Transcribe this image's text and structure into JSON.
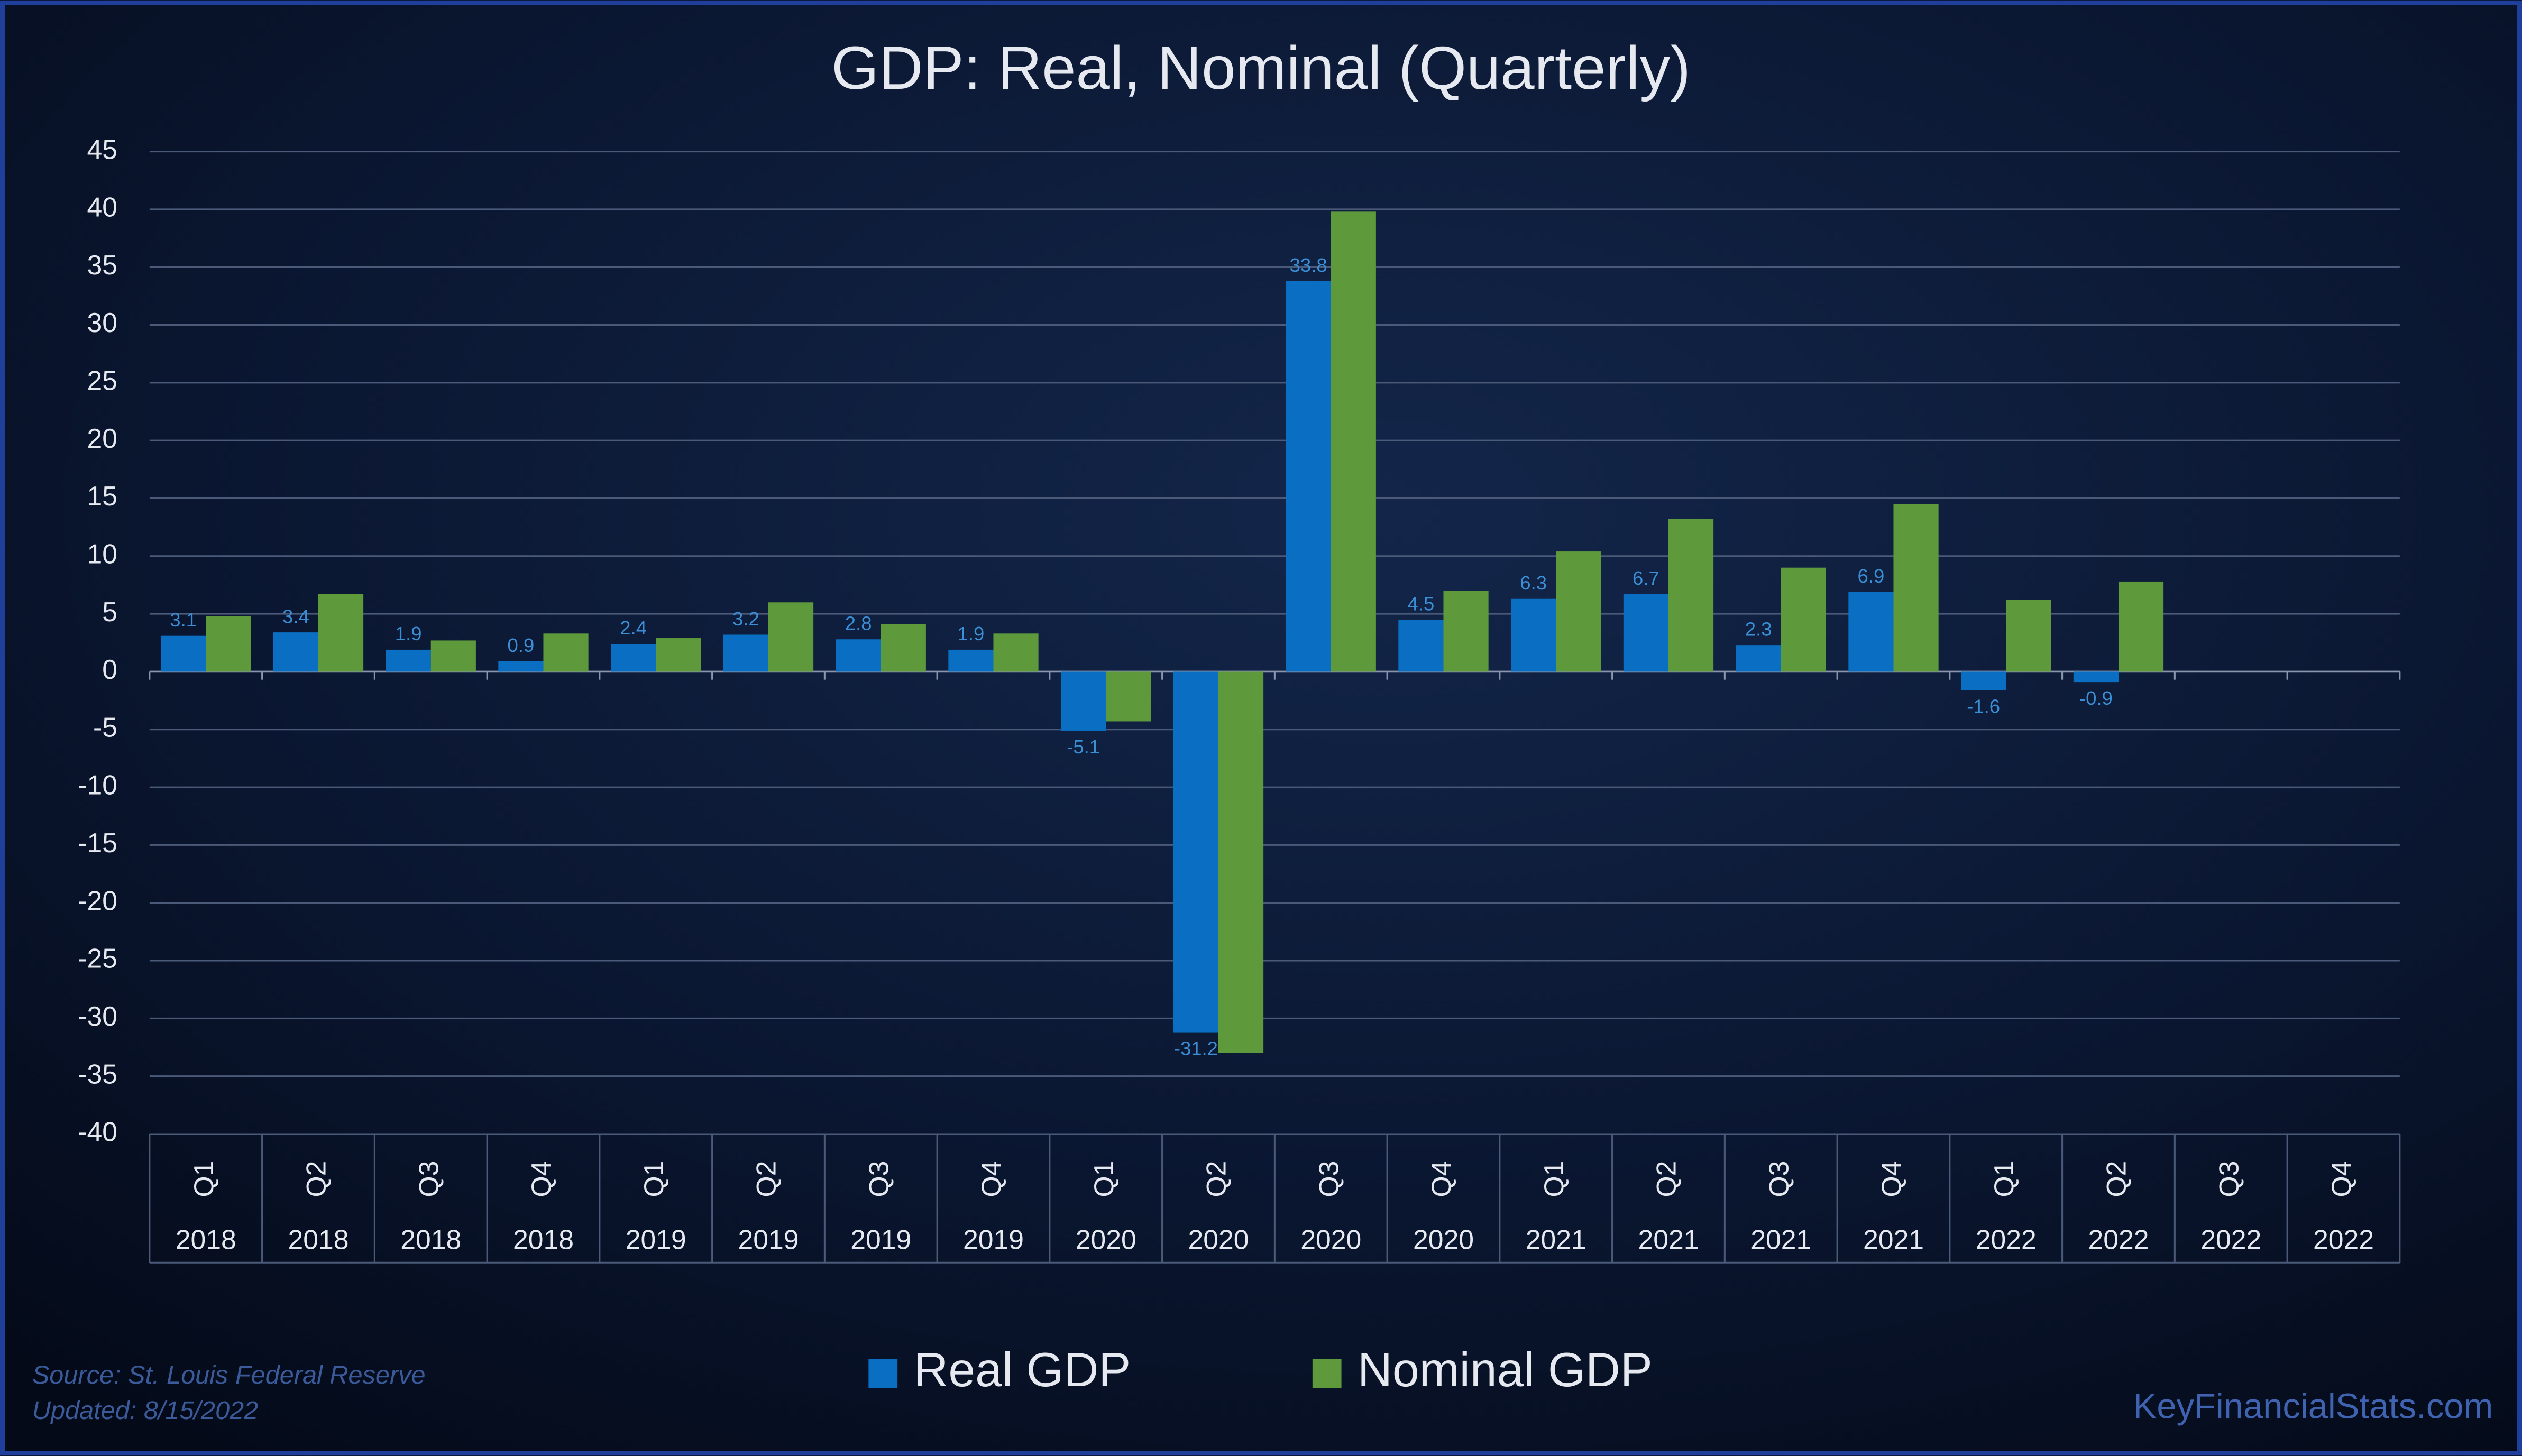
{
  "chart_data": {
    "type": "bar",
    "title": "GDP: Real, Nominal (Quarterly)",
    "categories": [
      "Q1",
      "Q2",
      "Q3",
      "Q4",
      "Q1",
      "Q2",
      "Q3",
      "Q4",
      "Q1",
      "Q2",
      "Q3",
      "Q4",
      "Q1",
      "Q2",
      "Q3",
      "Q4",
      "Q1",
      "Q2",
      "Q3",
      "Q4"
    ],
    "category_groups": [
      "2018",
      "2018",
      "2018",
      "2018",
      "2019",
      "2019",
      "2019",
      "2019",
      "2020",
      "2020",
      "2020",
      "2020",
      "2021",
      "2021",
      "2021",
      "2021",
      "2022",
      "2022",
      "2022",
      "2022"
    ],
    "series": [
      {
        "name": "Real GDP",
        "color": "#0a6fc2",
        "values": [
          3.1,
          3.4,
          1.9,
          0.9,
          2.4,
          3.2,
          2.8,
          1.9,
          -5.1,
          -31.2,
          33.8,
          4.5,
          6.3,
          6.7,
          2.3,
          6.9,
          -1.6,
          -0.9,
          null,
          null
        ]
      },
      {
        "name": "Nominal GDP",
        "color": "#5e9a3c",
        "values": [
          4.8,
          6.7,
          2.7,
          3.3,
          2.9,
          6.0,
          4.1,
          3.3,
          -4.3,
          -33.0,
          39.8,
          7.0,
          10.4,
          13.2,
          9.0,
          14.5,
          6.2,
          7.8,
          null,
          null
        ]
      }
    ],
    "ylim": [
      -40,
      45
    ],
    "yticks": [
      -40,
      -35,
      -30,
      -25,
      -20,
      -15,
      -10,
      -5,
      0,
      5,
      10,
      15,
      20,
      25,
      30,
      35,
      40,
      45
    ],
    "grid": true,
    "legend": "bottom",
    "source": "Source: St. Louis Federal Reserve",
    "updated": "Updated: 8/15/2022",
    "watermark": "KeyFinancialStats.com"
  }
}
